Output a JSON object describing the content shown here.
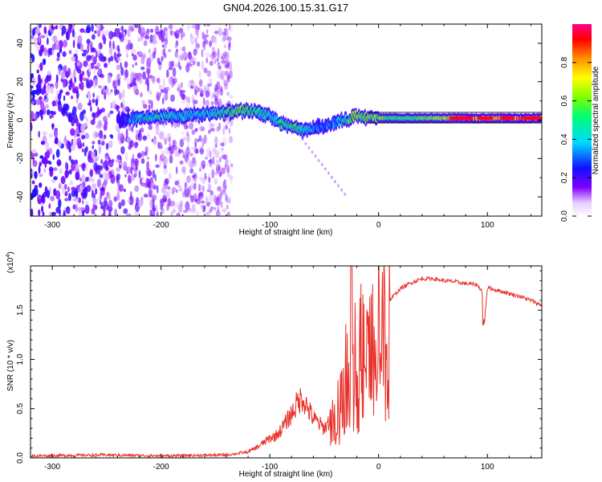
{
  "title": "GN04.2026.100.15.31.G17",
  "chart_data": [
    {
      "type": "heatmap",
      "xlabel": "Height of straight line (km)",
      "ylabel": "Frequency (Hz)",
      "xlim": [
        -320,
        150
      ],
      "ylim": [
        -50,
        50
      ],
      "xticks": [
        -300,
        -200,
        -100,
        0,
        100
      ],
      "yticks": [
        -40,
        -20,
        0,
        20,
        40
      ],
      "colorbar": {
        "label": "Normalized spectral amplitude",
        "range": [
          0,
          1
        ],
        "ticks": [
          "0.0",
          "0.2",
          "0.4",
          "0.6",
          "0.8"
        ],
        "tick_values": [
          0,
          0.2,
          0.4,
          0.6,
          0.8
        ]
      },
      "ridge": {
        "x": [
          -240,
          -220,
          -200,
          -180,
          -160,
          -140,
          -120,
          -110,
          -100,
          -90,
          -80,
          -70,
          -60,
          -50,
          -40,
          -30,
          -20,
          -10,
          0,
          20,
          40,
          60,
          80,
          100,
          120,
          150
        ],
        "freq": [
          0,
          1,
          2,
          2,
          3,
          4,
          5,
          4,
          2,
          -2,
          -3,
          -6,
          -4,
          -3,
          -1,
          0,
          3,
          1,
          1,
          1,
          1,
          1,
          1,
          1,
          1,
          1
        ],
        "amplitude": [
          0.2,
          0.4,
          0.45,
          0.4,
          0.4,
          0.5,
          0.55,
          0.5,
          0.4,
          0.45,
          0.5,
          0.45,
          0.35,
          0.3,
          0.35,
          0.45,
          0.6,
          0.55,
          0.6,
          0.5,
          0.55,
          0.65,
          0.85,
          0.8,
          0.85,
          0.9
        ]
      }
    },
    {
      "type": "line",
      "xlabel": "Height of straight line (km)",
      "ylabel": "SNR (10 * v/v)",
      "yscale_label": "(x10",
      "yscale_exp": "4",
      "yscale_close": ")",
      "xlim": [
        -320,
        150
      ],
      "ylim": [
        0,
        1.95
      ],
      "xticks": [
        -300,
        -200,
        -100,
        0,
        100
      ],
      "yticks": [
        "0.0",
        "0.5",
        "1.0",
        "1.5"
      ],
      "ytick_values": [
        0,
        0.5,
        1.0,
        1.5
      ],
      "series": [
        {
          "name": "SNR",
          "color": "#e8312a",
          "x": [
            -320,
            -250,
            -200,
            -140,
            -120,
            -110,
            -100,
            -95,
            -90,
            -80,
            -75,
            -70,
            -65,
            -60,
            -55,
            -50,
            -45,
            -40,
            -35,
            -30,
            -25,
            -20,
            -15,
            -10,
            -5,
            0,
            10,
            20,
            30,
            40,
            50,
            60,
            70,
            80,
            90,
            95,
            97,
            100,
            110,
            120,
            130,
            140,
            150
          ],
          "y": [
            0.02,
            0.03,
            0.02,
            0.03,
            0.06,
            0.12,
            0.2,
            0.22,
            0.28,
            0.45,
            0.55,
            0.62,
            0.5,
            0.4,
            0.35,
            0.3,
            0.38,
            0.5,
            0.7,
            0.95,
            1.05,
            1.2,
            1.25,
            1.2,
            1.3,
            1.4,
            1.6,
            1.72,
            1.78,
            1.82,
            1.82,
            1.8,
            1.79,
            1.77,
            1.76,
            1.7,
            1.35,
            1.73,
            1.7,
            1.67,
            1.64,
            1.6,
            1.55
          ]
        }
      ]
    }
  ]
}
